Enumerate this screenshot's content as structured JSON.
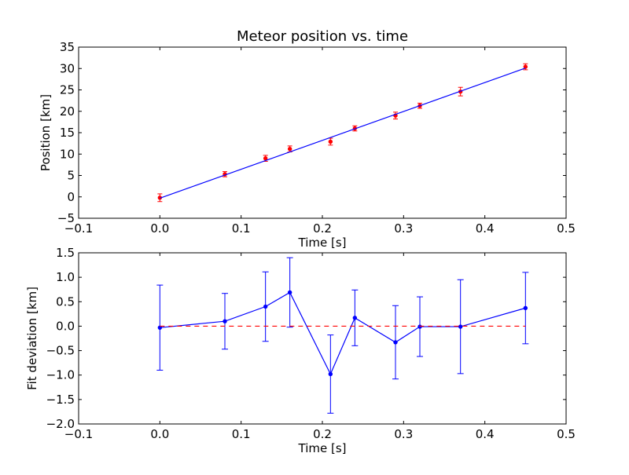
{
  "chart_data": [
    {
      "type": "scatter",
      "title": "Meteor position vs. time",
      "xlabel": "Time [s]",
      "ylabel": "Position [km]",
      "xlim": [
        -0.1,
        0.5
      ],
      "ylim": [
        -5,
        35
      ],
      "xticks": [
        -0.1,
        0.0,
        0.1,
        0.2,
        0.3,
        0.4,
        0.5
      ],
      "yticks": [
        -5,
        0,
        5,
        10,
        15,
        20,
        25,
        30,
        35
      ],
      "xtick_labels": [
        "−0.1",
        "0.0",
        "0.1",
        "0.2",
        "0.3",
        "0.4",
        "0.5"
      ],
      "ytick_labels": [
        "−5",
        "0",
        "5",
        "10",
        "15",
        "20",
        "25",
        "30",
        "35"
      ],
      "grid": false,
      "series": [
        {
          "kind": "errorbar-points",
          "color": "#ff0000",
          "x": [
            0.0,
            0.08,
            0.13,
            0.16,
            0.21,
            0.24,
            0.29,
            0.32,
            0.37,
            0.45
          ],
          "y": [
            -0.2,
            5.3,
            9.0,
            11.2,
            12.9,
            16.0,
            19.0,
            21.3,
            24.6,
            30.4
          ],
          "yerr": [
            0.9,
            0.6,
            0.7,
            0.7,
            0.8,
            0.6,
            0.8,
            0.6,
            1.0,
            0.7
          ]
        },
        {
          "kind": "fit-line",
          "color": "#0000ff",
          "x": [
            0.0,
            0.45
          ],
          "y": [
            -0.3,
            30.1
          ]
        }
      ]
    },
    {
      "type": "line",
      "xlabel": "Time [s]",
      "ylabel": "Fit deviation [km]",
      "xlim": [
        -0.1,
        0.5
      ],
      "ylim": [
        -2.0,
        1.5
      ],
      "xticks": [
        -0.1,
        0.0,
        0.1,
        0.2,
        0.3,
        0.4,
        0.5
      ],
      "yticks": [
        -2.0,
        -1.5,
        -1.0,
        -0.5,
        0.0,
        0.5,
        1.0,
        1.5
      ],
      "xtick_labels": [
        "−0.1",
        "0.0",
        "0.1",
        "0.2",
        "0.3",
        "0.4",
        "0.5"
      ],
      "ytick_labels": [
        "−2.0",
        "−1.5",
        "−1.0",
        "−0.5",
        "0.0",
        "0.5",
        "1.0",
        "1.5"
      ],
      "grid": false,
      "series": [
        {
          "kind": "errorbar-line",
          "color": "#0000ff",
          "x": [
            0.0,
            0.08,
            0.13,
            0.16,
            0.21,
            0.24,
            0.29,
            0.32,
            0.37,
            0.45
          ],
          "y": [
            -0.03,
            0.1,
            0.4,
            0.69,
            -0.98,
            0.17,
            -0.33,
            -0.01,
            -0.01,
            0.37
          ],
          "yerr": [
            0.87,
            0.57,
            0.71,
            0.71,
            0.8,
            0.57,
            0.75,
            0.61,
            0.96,
            0.73
          ]
        },
        {
          "kind": "reference-line",
          "color": "#ff0000",
          "style": "dashed",
          "x": [
            0.0,
            0.45
          ],
          "y": [
            0.0,
            0.0
          ]
        }
      ]
    }
  ]
}
